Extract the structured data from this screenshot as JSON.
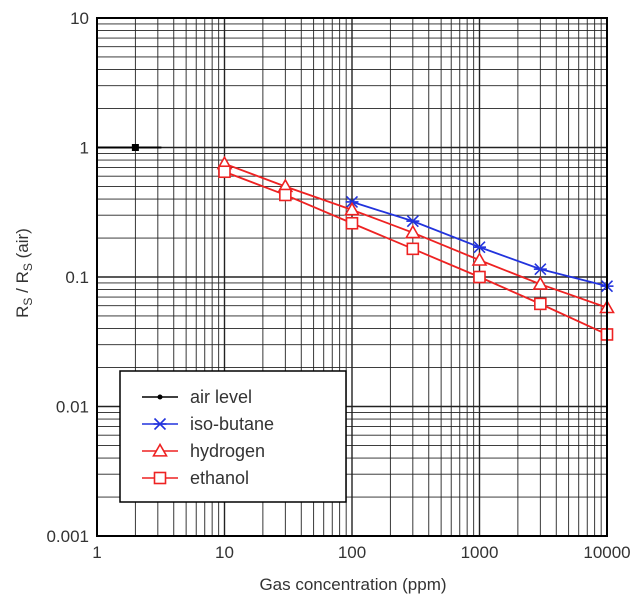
{
  "chart_data": {
    "type": "line",
    "title": "",
    "xlabel": "Gas concentration (ppm)",
    "ylabel": {
      "main_1": "R",
      "sub_1": "S",
      "main_2": " / R",
      "sub_2": "S",
      "main_3": " (air)"
    },
    "x_scale": "log",
    "y_scale": "log",
    "xlim": [
      1,
      10000
    ],
    "ylim": [
      0.001,
      10
    ],
    "x_ticks": [
      {
        "value": 1,
        "label": "1"
      },
      {
        "value": 10,
        "label": "10"
      },
      {
        "value": 100,
        "label": "100"
      },
      {
        "value": 1000,
        "label": "1000"
      },
      {
        "value": 10000,
        "label": "10000"
      }
    ],
    "y_ticks": [
      {
        "value": 0.001,
        "label": "0.001"
      },
      {
        "value": 0.01,
        "label": "0.01"
      },
      {
        "value": 0.1,
        "label": "0.1"
      },
      {
        "value": 1,
        "label": "1"
      },
      {
        "value": 10,
        "label": "10"
      }
    ],
    "grid": true,
    "legend_position": "bottom-left",
    "series": [
      {
        "name": "air level",
        "color": "#000000",
        "marker": "dot",
        "style": "segment",
        "x_range": [
          1,
          3.2
        ],
        "y": 1,
        "point": {
          "x": 2,
          "y": 1
        }
      },
      {
        "name": "iso-butane",
        "color": "#2233dd",
        "marker": "x",
        "x": [
          100,
          300,
          1000,
          3000,
          10000
        ],
        "y": [
          0.38,
          0.27,
          0.17,
          0.115,
          0.085
        ]
      },
      {
        "name": "hydrogen",
        "color": "#ee2222",
        "marker": "triangle",
        "x": [
          10,
          30,
          100,
          300,
          1000,
          3000,
          10000
        ],
        "y": [
          0.75,
          0.5,
          0.33,
          0.22,
          0.135,
          0.088,
          0.058
        ]
      },
      {
        "name": "ethanol",
        "color": "#ee2222",
        "marker": "square",
        "x": [
          10,
          30,
          100,
          300,
          1000,
          3000,
          10000
        ],
        "y": [
          0.65,
          0.43,
          0.26,
          0.165,
          0.1,
          0.062,
          0.036
        ]
      }
    ]
  }
}
